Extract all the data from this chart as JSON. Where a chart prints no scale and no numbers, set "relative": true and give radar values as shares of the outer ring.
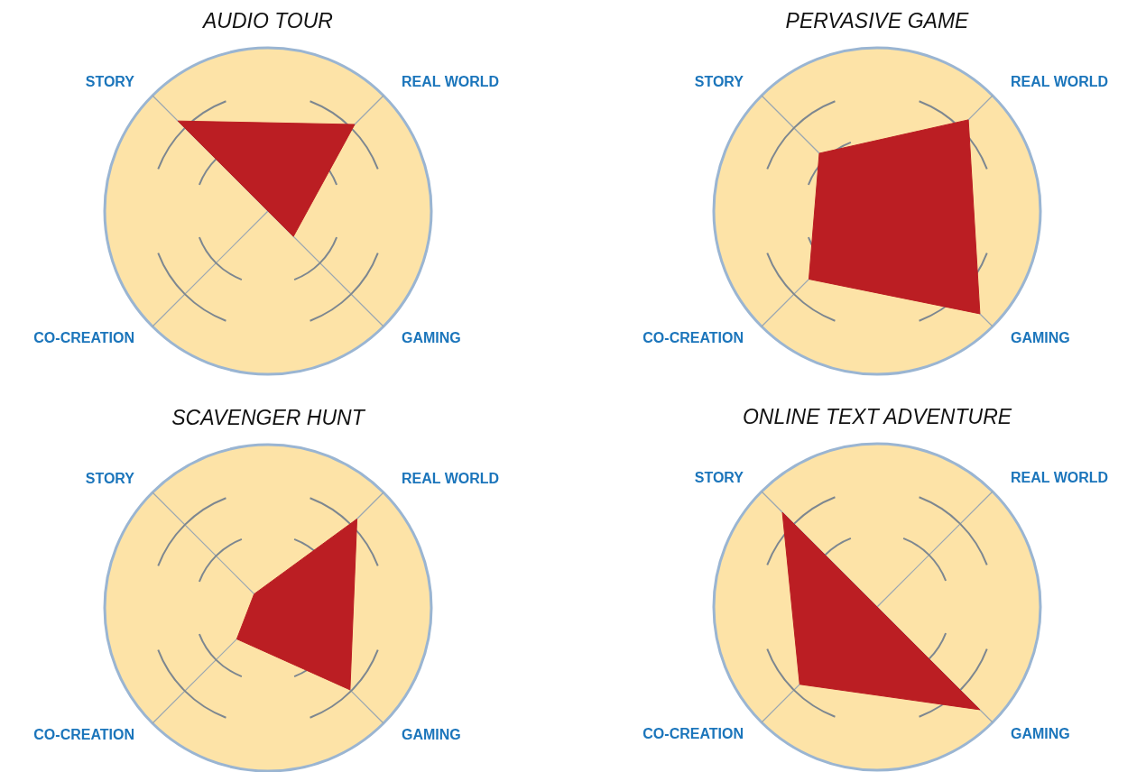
{
  "chart_data": [
    {
      "type": "radar",
      "title": "AUDIO TOUR",
      "categories": [
        "REAL WORLD",
        "GAMING",
        "CO-CREATION",
        "STORY"
      ],
      "relative": true,
      "grid": true,
      "series": [
        {
          "color": "#bb1e23",
          "values": [
            0.75,
            0.22,
            0,
            0.78
          ]
        }
      ]
    },
    {
      "type": "radar",
      "title": "PERVASIVE GAME",
      "categories": [
        "REAL WORLD",
        "GAMING",
        "CO-CREATION",
        "STORY"
      ],
      "relative": true,
      "grid": true,
      "series": [
        {
          "color": "#bb1e23",
          "values": [
            0.79,
            0.89,
            0.59,
            0.5
          ]
        }
      ]
    },
    {
      "type": "radar",
      "title": "SCAVENGER HUNT",
      "categories": [
        "REAL WORLD",
        "GAMING",
        "CO-CREATION",
        "STORY"
      ],
      "relative": true,
      "grid": true,
      "series": [
        {
          "color": "#bb1e23",
          "values": [
            0.77,
            0.71,
            0.27,
            0.12
          ]
        }
      ]
    },
    {
      "type": "radar",
      "title": "ONLINE TEXT ADVENTURE",
      "categories": [
        "REAL WORLD",
        "GAMING",
        "CO-CREATION",
        "STORY"
      ],
      "relative": true,
      "grid": true,
      "series": [
        {
          "color": "#bb1e23",
          "values": [
            0,
            0.89,
            0.67,
            0.82
          ]
        }
      ]
    }
  ]
}
